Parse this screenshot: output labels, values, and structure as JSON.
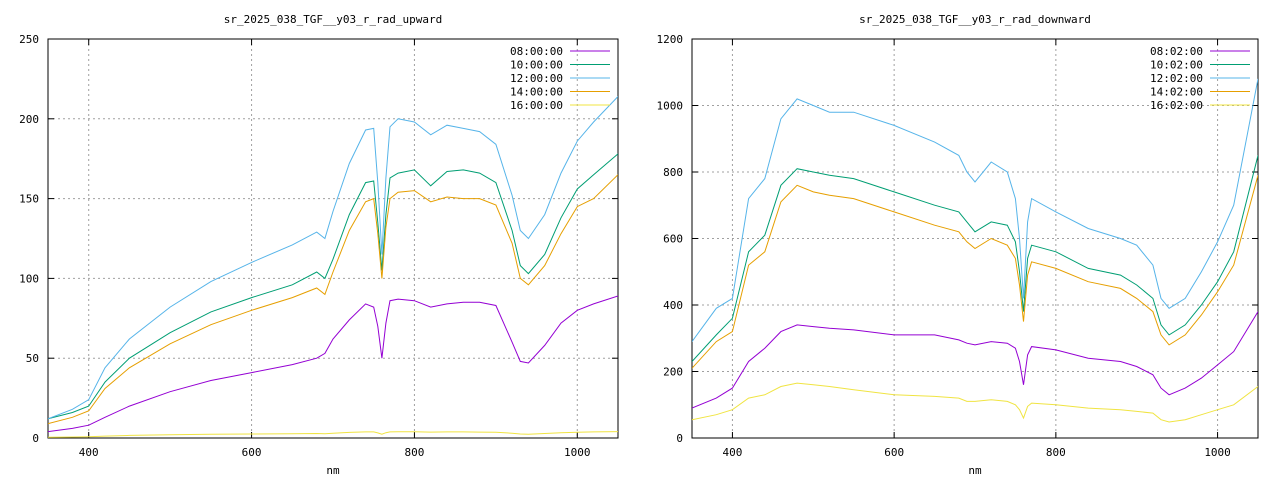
{
  "chart_data": [
    {
      "type": "line",
      "title": "sr_2025_038_TGF__y03_r_rad_upward",
      "xlabel": "nm",
      "ylabel": "",
      "xlim": [
        350,
        1050
      ],
      "ylim": [
        0,
        250
      ],
      "xticks": [
        400,
        600,
        800,
        1000
      ],
      "yticks": [
        0,
        50,
        100,
        150,
        200,
        250
      ],
      "grid": true,
      "legend": "top-right",
      "series": [
        {
          "name": "08:00:00",
          "color": "#9400d3",
          "x": [
            350,
            380,
            400,
            420,
            450,
            500,
            550,
            600,
            650,
            680,
            690,
            700,
            720,
            740,
            750,
            755,
            760,
            765,
            770,
            780,
            800,
            820,
            840,
            860,
            880,
            900,
            920,
            930,
            940,
            960,
            980,
            1000,
            1020,
            1050
          ],
          "y": [
            4,
            6,
            8,
            13,
            20,
            29,
            36,
            41,
            46,
            50,
            53,
            62,
            74,
            84,
            82,
            70,
            50,
            72,
            86,
            87,
            86,
            82,
            84,
            85,
            85,
            83,
            60,
            48,
            47,
            58,
            72,
            80,
            84,
            89
          ]
        },
        {
          "name": "10:00:00",
          "color": "#009e73",
          "x": [
            350,
            380,
            400,
            420,
            450,
            500,
            550,
            600,
            650,
            680,
            690,
            700,
            720,
            740,
            750,
            755,
            760,
            765,
            770,
            780,
            800,
            820,
            840,
            860,
            880,
            900,
            920,
            930,
            940,
            960,
            980,
            1000,
            1020,
            1050
          ],
          "y": [
            12,
            16,
            20,
            35,
            50,
            66,
            79,
            88,
            96,
            104,
            100,
            112,
            140,
            160,
            161,
            135,
            105,
            140,
            163,
            166,
            168,
            158,
            167,
            168,
            166,
            160,
            130,
            108,
            103,
            115,
            138,
            156,
            165,
            178
          ]
        },
        {
          "name": "12:00:00",
          "color": "#56b4e9",
          "x": [
            350,
            380,
            400,
            420,
            450,
            500,
            550,
            600,
            650,
            680,
            690,
            700,
            720,
            740,
            750,
            755,
            760,
            765,
            770,
            780,
            800,
            820,
            840,
            860,
            880,
            900,
            920,
            930,
            940,
            960,
            980,
            1000,
            1020,
            1050
          ],
          "y": [
            12,
            18,
            24,
            44,
            62,
            82,
            98,
            110,
            121,
            129,
            125,
            142,
            172,
            193,
            194,
            160,
            115,
            163,
            195,
            200,
            198,
            190,
            196,
            194,
            192,
            184,
            152,
            130,
            125,
            140,
            166,
            186,
            198,
            214
          ]
        },
        {
          "name": "14:00:00",
          "color": "#e69f00",
          "x": [
            350,
            380,
            400,
            420,
            450,
            500,
            550,
            600,
            650,
            680,
            690,
            700,
            720,
            740,
            750,
            755,
            760,
            765,
            770,
            780,
            800,
            820,
            840,
            860,
            880,
            900,
            920,
            930,
            940,
            960,
            980,
            1000,
            1020,
            1050
          ],
          "y": [
            9,
            13,
            17,
            31,
            44,
            59,
            71,
            80,
            88,
            94,
            90,
            104,
            130,
            148,
            150,
            128,
            100,
            132,
            150,
            154,
            155,
            148,
            151,
            150,
            150,
            146,
            122,
            100,
            96,
            108,
            128,
            145,
            150,
            165
          ]
        },
        {
          "name": "16:00:00",
          "color": "#f0e442",
          "x": [
            350,
            380,
            400,
            420,
            450,
            500,
            550,
            600,
            650,
            680,
            690,
            700,
            720,
            740,
            750,
            755,
            760,
            765,
            770,
            780,
            800,
            820,
            840,
            860,
            880,
            900,
            920,
            930,
            940,
            960,
            980,
            1000,
            1020,
            1050
          ],
          "y": [
            0.5,
            0.6,
            0.8,
            1.2,
            1.6,
            2,
            2.3,
            2.5,
            2.7,
            2.8,
            2.7,
            3,
            3.5,
            3.8,
            3.8,
            3.2,
            2.4,
            3.3,
            3.8,
            3.9,
            3.9,
            3.7,
            3.8,
            3.8,
            3.7,
            3.6,
            3,
            2.5,
            2.4,
            2.8,
            3.3,
            3.6,
            3.8,
            4
          ]
        }
      ]
    },
    {
      "type": "line",
      "title": "sr_2025_038_TGF__y03_r_rad_downward",
      "xlabel": "nm",
      "ylabel": "",
      "xlim": [
        350,
        1050
      ],
      "ylim": [
        0,
        1200
      ],
      "xticks": [
        400,
        600,
        800,
        1000
      ],
      "yticks": [
        0,
        200,
        400,
        600,
        800,
        1000,
        1200
      ],
      "grid": true,
      "legend": "top-right",
      "series": [
        {
          "name": "08:02:00",
          "color": "#9400d3",
          "x": [
            350,
            380,
            400,
            420,
            440,
            460,
            480,
            500,
            520,
            550,
            600,
            650,
            680,
            690,
            700,
            720,
            740,
            750,
            755,
            760,
            765,
            770,
            800,
            840,
            880,
            900,
            920,
            930,
            940,
            960,
            980,
            1000,
            1020,
            1050
          ],
          "y": [
            90,
            120,
            150,
            230,
            270,
            320,
            340,
            335,
            330,
            325,
            310,
            310,
            295,
            285,
            280,
            290,
            285,
            270,
            230,
            160,
            250,
            275,
            265,
            240,
            230,
            215,
            190,
            150,
            130,
            150,
            180,
            220,
            260,
            380
          ]
        },
        {
          "name": "10:02:00",
          "color": "#009e73",
          "x": [
            350,
            380,
            400,
            420,
            440,
            460,
            480,
            500,
            520,
            550,
            600,
            650,
            680,
            690,
            700,
            720,
            740,
            750,
            755,
            760,
            765,
            770,
            800,
            840,
            880,
            900,
            920,
            930,
            940,
            960,
            980,
            1000,
            1020,
            1050
          ],
          "y": [
            230,
            310,
            360,
            560,
            610,
            760,
            810,
            800,
            790,
            780,
            740,
            700,
            680,
            650,
            620,
            650,
            640,
            590,
            500,
            380,
            540,
            580,
            560,
            510,
            490,
            460,
            420,
            340,
            310,
            340,
            400,
            470,
            560,
            850
          ]
        },
        {
          "name": "12:02:00",
          "color": "#56b4e9",
          "x": [
            350,
            380,
            400,
            420,
            440,
            460,
            480,
            500,
            520,
            550,
            600,
            650,
            680,
            690,
            700,
            720,
            740,
            750,
            755,
            760,
            765,
            770,
            800,
            840,
            880,
            900,
            920,
            930,
            940,
            960,
            980,
            1000,
            1020,
            1050
          ],
          "y": [
            290,
            390,
            420,
            720,
            780,
            960,
            1020,
            1000,
            980,
            980,
            940,
            890,
            850,
            800,
            770,
            830,
            800,
            720,
            600,
            420,
            650,
            720,
            680,
            630,
            600,
            580,
            520,
            420,
            390,
            420,
            500,
            590,
            700,
            1080
          ]
        },
        {
          "name": "14:02:00",
          "color": "#e69f00",
          "x": [
            350,
            380,
            400,
            420,
            440,
            460,
            480,
            500,
            520,
            550,
            600,
            650,
            680,
            690,
            700,
            720,
            740,
            750,
            755,
            760,
            765,
            770,
            800,
            840,
            880,
            900,
            920,
            930,
            940,
            960,
            980,
            1000,
            1020,
            1050
          ],
          "y": [
            210,
            290,
            320,
            520,
            560,
            710,
            760,
            740,
            730,
            720,
            680,
            640,
            620,
            590,
            570,
            600,
            580,
            540,
            460,
            350,
            490,
            530,
            510,
            470,
            450,
            420,
            380,
            310,
            280,
            310,
            370,
            440,
            520,
            790
          ]
        },
        {
          "name": "16:02:00",
          "color": "#f0e442",
          "x": [
            350,
            380,
            400,
            420,
            440,
            460,
            480,
            500,
            520,
            550,
            600,
            650,
            680,
            690,
            700,
            720,
            740,
            750,
            755,
            760,
            765,
            770,
            800,
            840,
            880,
            900,
            920,
            930,
            940,
            960,
            980,
            1000,
            1020,
            1050
          ],
          "y": [
            55,
            70,
            85,
            120,
            130,
            155,
            165,
            160,
            155,
            145,
            130,
            125,
            120,
            110,
            110,
            115,
            110,
            100,
            85,
            60,
            95,
            105,
            100,
            90,
            85,
            80,
            75,
            55,
            48,
            55,
            70,
            85,
            100,
            155
          ]
        }
      ]
    }
  ]
}
